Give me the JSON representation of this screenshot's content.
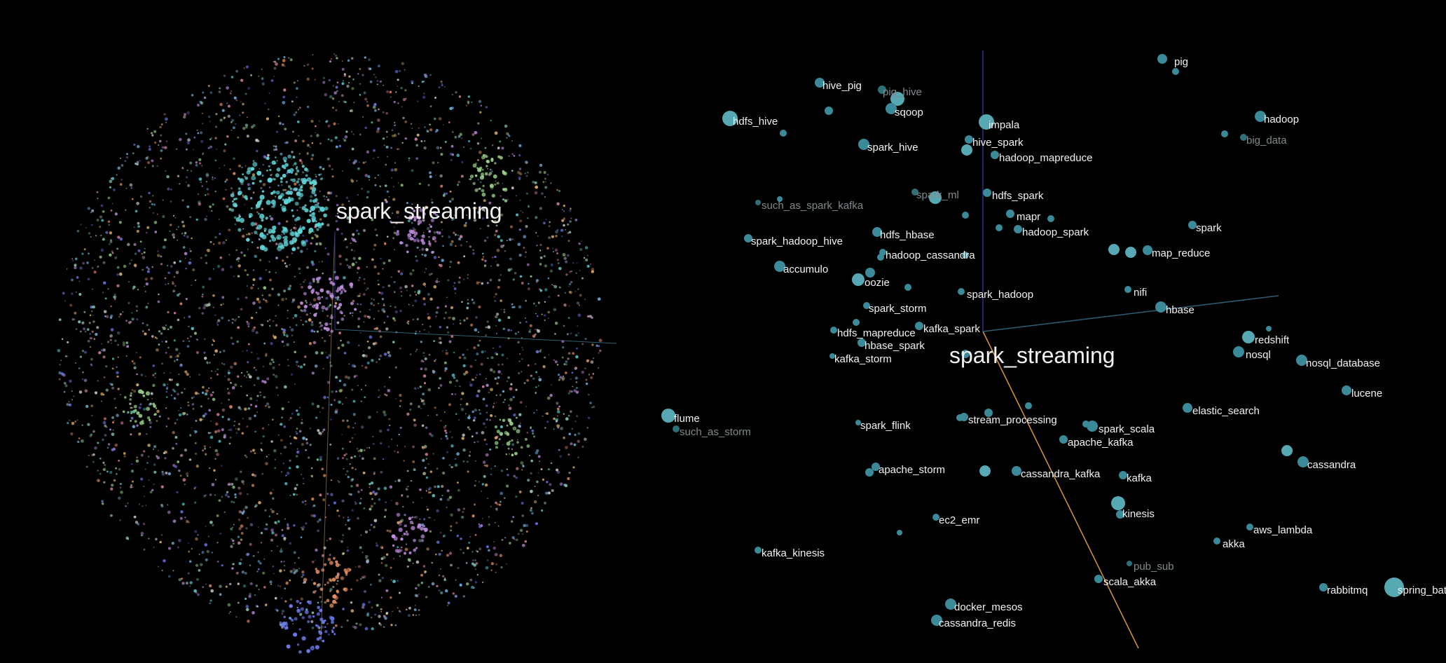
{
  "colors": {
    "background": "#000000",
    "node": "#3a8a99",
    "node_light": "#56a8b3",
    "node_green": "#4f9d83",
    "label_bright": "#f2f2f2",
    "label_dim": "#7f8a8c",
    "axis_blue": "#2f2a8e",
    "axis_orange": "#d9963a",
    "axis_teal": "#2c5f72"
  },
  "cloud": {
    "focus_label": "spark_streaming",
    "palette": [
      "#5fd4d8",
      "#7ab8e8",
      "#6e7cf0",
      "#c08de0",
      "#e08aa8",
      "#e89060",
      "#9bd38a",
      "#d8d8d8",
      "#f0c070",
      "#8fd0c0"
    ]
  },
  "neighbors": {
    "focus_label": "spark_streaming",
    "terms": [
      {
        "label": "pig",
        "tone": "bright"
      },
      {
        "label": "hive_pig",
        "tone": "bright"
      },
      {
        "label": "pig_hive",
        "tone": "dim"
      },
      {
        "label": "sqoop",
        "tone": "bright"
      },
      {
        "label": "hdfs_hive",
        "tone": "bright"
      },
      {
        "label": "impala",
        "tone": "bright"
      },
      {
        "label": "hadoop",
        "tone": "bright"
      },
      {
        "label": "big_data",
        "tone": "dim"
      },
      {
        "label": "hive_spark",
        "tone": "bright"
      },
      {
        "label": "spark_hive",
        "tone": "bright"
      },
      {
        "label": "hadoop_mapreduce",
        "tone": "bright"
      },
      {
        "label": "spark_ml",
        "tone": "dim"
      },
      {
        "label": "hdfs_spark",
        "tone": "bright"
      },
      {
        "label": "such_as_spark_kafka",
        "tone": "dim"
      },
      {
        "label": "mapr",
        "tone": "bright"
      },
      {
        "label": "spark",
        "tone": "bright"
      },
      {
        "label": "hdfs_hbase",
        "tone": "bright"
      },
      {
        "label": "hadoop_spark",
        "tone": "bright"
      },
      {
        "label": "spark_hadoop_hive",
        "tone": "bright"
      },
      {
        "label": "hadoop_cassandra",
        "tone": "bright"
      },
      {
        "label": "map_reduce",
        "tone": "bright"
      },
      {
        "label": "accumulo",
        "tone": "bright"
      },
      {
        "label": "oozie",
        "tone": "bright"
      },
      {
        "label": "nifi",
        "tone": "bright"
      },
      {
        "label": "spark_hadoop",
        "tone": "bright"
      },
      {
        "label": "spark_storm",
        "tone": "bright"
      },
      {
        "label": "hbase",
        "tone": "bright"
      },
      {
        "label": "kafka_spark",
        "tone": "bright"
      },
      {
        "label": "hdfs_mapreduce",
        "tone": "bright"
      },
      {
        "label": "redshift",
        "tone": "bright"
      },
      {
        "label": "hbase_spark",
        "tone": "bright"
      },
      {
        "label": "nosql",
        "tone": "bright"
      },
      {
        "label": "kafka_storm",
        "tone": "bright"
      },
      {
        "label": "nosql_database",
        "tone": "bright"
      },
      {
        "label": "lucene",
        "tone": "bright"
      },
      {
        "label": "flume",
        "tone": "bright"
      },
      {
        "label": "such_as_storm",
        "tone": "dim"
      },
      {
        "label": "elastic_search",
        "tone": "bright"
      },
      {
        "label": "spark_flink",
        "tone": "bright"
      },
      {
        "label": "stream_processing",
        "tone": "bright"
      },
      {
        "label": "spark_scala",
        "tone": "bright"
      },
      {
        "label": "apache_kafka",
        "tone": "bright"
      },
      {
        "label": "cassandra",
        "tone": "bright"
      },
      {
        "label": "apache_storm",
        "tone": "bright"
      },
      {
        "label": "cassandra_kafka",
        "tone": "bright"
      },
      {
        "label": "kafka",
        "tone": "bright"
      },
      {
        "label": "kinesis",
        "tone": "bright"
      },
      {
        "label": "ec2_emr",
        "tone": "bright"
      },
      {
        "label": "aws_lambda",
        "tone": "bright"
      },
      {
        "label": "akka",
        "tone": "bright"
      },
      {
        "label": "kafka_kinesis",
        "tone": "bright"
      },
      {
        "label": "pub_sub",
        "tone": "dim"
      },
      {
        "label": "scala_akka",
        "tone": "bright"
      },
      {
        "label": "rabbitmq",
        "tone": "bright"
      },
      {
        "label": "spring_bat",
        "tone": "bright"
      },
      {
        "label": "docker_mesos",
        "tone": "bright"
      },
      {
        "label": "cassandra_redis",
        "tone": "bright"
      }
    ]
  }
}
